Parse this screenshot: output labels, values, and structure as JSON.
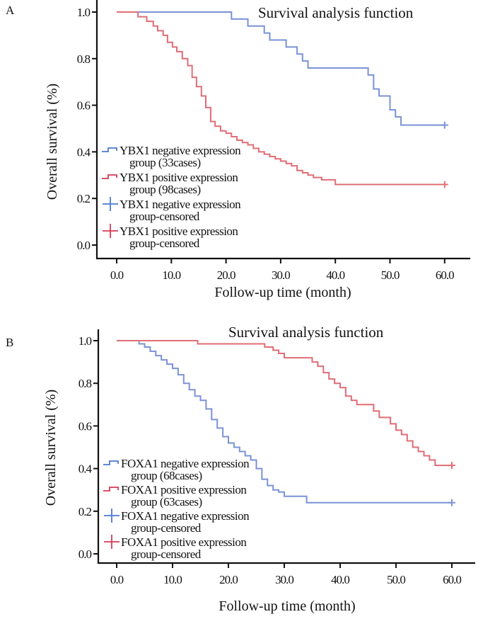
{
  "figure": {
    "colors": {
      "negative": "#7b93d6",
      "positive": "#e06d76",
      "negative_legend": "#4a7ad0",
      "positive_legend": "#d63a55"
    }
  },
  "chart_data": [
    {
      "panel": "A",
      "type": "line",
      "subtype": "kaplan-meier step",
      "title": "Survival analysis function",
      "xlabel": "Follow-up time (month)",
      "ylabel": "Overall survival (%)",
      "xlim": [
        -3,
        65
      ],
      "ylim": [
        -0.06,
        1.06
      ],
      "xticks": [
        0,
        10,
        20,
        30,
        40,
        50,
        60
      ],
      "xtick_labels": [
        "0.0",
        "10.0",
        "20.0",
        "30.0",
        "40.0",
        "50.0",
        "60.0"
      ],
      "yticks": [
        0,
        0.2,
        0.4,
        0.6,
        0.8,
        1.0
      ],
      "ytick_labels": [
        "0.0",
        "0.2",
        "0.4",
        "0.6",
        "0.8",
        "1.0"
      ],
      "grid": false,
      "legend_position": "bottom-left",
      "legend": [
        {
          "symbol": "step",
          "color_key": "negative_legend",
          "line1": "YBX1 negative expression",
          "line2": "group (33cases)"
        },
        {
          "symbol": "step",
          "color_key": "positive_legend",
          "line1": "YBX1 positive expression",
          "line2": "group (98cases)"
        },
        {
          "symbol": "cross",
          "color_key": "negative_legend",
          "line1": "YBX1 negative expression",
          "line2": "group-censored"
        },
        {
          "symbol": "cross",
          "color_key": "positive_legend",
          "line1": "YBX1 positive expression",
          "line2": "group-censored"
        }
      ],
      "series": [
        {
          "name": "YBX1 negative expression group (33cases)",
          "color_key": "negative",
          "x": [
            0,
            21,
            24,
            27,
            28,
            31,
            33,
            34,
            35,
            46,
            47,
            48,
            50,
            51,
            52,
            60
          ],
          "y": [
            1.0,
            0.97,
            0.94,
            0.91,
            0.88,
            0.85,
            0.82,
            0.79,
            0.76,
            0.73,
            0.67,
            0.64,
            0.58,
            0.55,
            0.515,
            0.515
          ],
          "censored": [
            {
              "x": 60,
              "y": 0.515
            }
          ]
        },
        {
          "name": "YBX1 positive expression group (98cases)",
          "color_key": "positive",
          "x": [
            0,
            3.9,
            5.5,
            6.7,
            7.5,
            8.5,
            9.3,
            10.2,
            11,
            12,
            13,
            13.8,
            14.6,
            15.5,
            16.3,
            17.2,
            18,
            19,
            20,
            21,
            22,
            23,
            24,
            25,
            26,
            27,
            28,
            29,
            30,
            31,
            32,
            33,
            34,
            35,
            36,
            37.5,
            40,
            60
          ],
          "y": [
            1.0,
            0.98,
            0.96,
            0.94,
            0.92,
            0.9,
            0.87,
            0.85,
            0.83,
            0.8,
            0.77,
            0.72,
            0.68,
            0.64,
            0.59,
            0.53,
            0.51,
            0.49,
            0.48,
            0.465,
            0.45,
            0.44,
            0.43,
            0.415,
            0.4,
            0.39,
            0.38,
            0.37,
            0.36,
            0.35,
            0.34,
            0.32,
            0.31,
            0.3,
            0.29,
            0.28,
            0.26,
            0.26
          ],
          "censored": [
            {
              "x": 60,
              "y": 0.26
            }
          ]
        }
      ]
    },
    {
      "panel": "B",
      "type": "line",
      "subtype": "kaplan-meier step",
      "title": "Survival analysis function",
      "xlabel": "Follow-up time (month)",
      "ylabel": "Overall survival (%)",
      "xlim": [
        -3,
        65
      ],
      "ylim": [
        -0.04,
        1.06
      ],
      "xticks": [
        0,
        10,
        20,
        30,
        40,
        50,
        60
      ],
      "xtick_labels": [
        "0.0",
        "10.0",
        "20.0",
        "30.0",
        "40.0",
        "50.0",
        "60.0"
      ],
      "yticks": [
        0,
        0.2,
        0.4,
        0.6,
        0.8,
        1.0
      ],
      "ytick_labels": [
        "0.0",
        "0.2",
        "0.4",
        "0.6",
        "0.8",
        "1.0"
      ],
      "grid": false,
      "legend_position": "bottom-left",
      "legend": [
        {
          "symbol": "step",
          "color_key": "negative_legend",
          "line1": "FOXA1 negative expression",
          "line2": "group (68cases)"
        },
        {
          "symbol": "step",
          "color_key": "positive_legend",
          "line1": "FOXA1 positive expression",
          "line2": "group (63cases)"
        },
        {
          "symbol": "cross",
          "color_key": "negative_legend",
          "line1": "FOXA1 negative expression",
          "line2": "group-censored"
        },
        {
          "symbol": "cross",
          "color_key": "positive_legend",
          "line1": "FOXA1 positive expression",
          "line2": "group-censored"
        }
      ],
      "series": [
        {
          "name": "FOXA1 negative expression group (68cases)",
          "color_key": "negative",
          "x": [
            0,
            4,
            5,
            6,
            7,
            8,
            9,
            10,
            11,
            12,
            13,
            14,
            15,
            16,
            17,
            18,
            19,
            20,
            21,
            22,
            23,
            24,
            25,
            26,
            27,
            28,
            29,
            30,
            34,
            60
          ],
          "y": [
            1.0,
            0.985,
            0.97,
            0.95,
            0.93,
            0.91,
            0.89,
            0.87,
            0.84,
            0.8,
            0.77,
            0.74,
            0.72,
            0.68,
            0.63,
            0.59,
            0.55,
            0.52,
            0.5,
            0.48,
            0.46,
            0.44,
            0.4,
            0.35,
            0.32,
            0.3,
            0.29,
            0.27,
            0.24,
            0.24
          ],
          "censored": [
            {
              "x": 60,
              "y": 0.24
            }
          ]
        },
        {
          "name": "FOXA1 positive expression group (63cases)",
          "color_key": "positive",
          "x": [
            0,
            14.5,
            26.5,
            28,
            29,
            30,
            35,
            36,
            37,
            38,
            39,
            40,
            41,
            42,
            43,
            46,
            47,
            49,
            50,
            51,
            52,
            53,
            54,
            55,
            56,
            57,
            60
          ],
          "y": [
            1.0,
            0.985,
            0.97,
            0.955,
            0.94,
            0.92,
            0.9,
            0.88,
            0.85,
            0.82,
            0.8,
            0.78,
            0.74,
            0.72,
            0.7,
            0.67,
            0.64,
            0.61,
            0.58,
            0.56,
            0.53,
            0.5,
            0.48,
            0.46,
            0.44,
            0.415,
            0.415
          ],
          "censored": [
            {
              "x": 60,
              "y": 0.415
            }
          ]
        }
      ]
    }
  ]
}
